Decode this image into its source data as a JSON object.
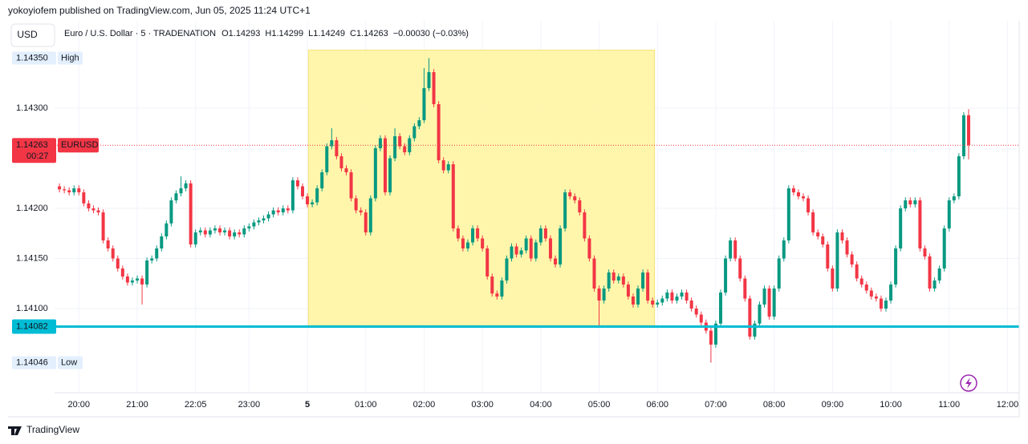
{
  "chart_data": {
    "type": "candlestick",
    "attribution": "yokoyiofem published on TradingView.com, Jun 05, 2025 11:24 UTC+1",
    "currency": "USD",
    "symbol": "Euro / U.S. Dollar · 5 · TRADENATION",
    "ohlc_letters": [
      "O",
      "H",
      "L",
      "C"
    ],
    "legend_values": [
      1.14293,
      1.14299,
      1.14249,
      1.14263
    ],
    "change_label": "−0.00030 (−0.03%)",
    "up_color": "#089981",
    "down_color": "#f23645",
    "open": [
      1.14222,
      1.14219,
      1.14218,
      1.14216,
      1.1422,
      1.14216,
      1.14205,
      1.142,
      1.14198,
      1.14196,
      1.14168,
      1.1416,
      1.1415,
      1.1414,
      1.14132,
      1.14126,
      1.14128,
      1.1413,
      1.14124,
      1.14148,
      1.1415,
      1.1416,
      1.14172,
      1.14185,
      1.14208,
      1.14215,
      1.1422,
      1.14225,
      1.14164,
      1.14176,
      1.14178,
      1.14174,
      1.14178,
      1.1418,
      1.14176,
      1.14178,
      1.14172,
      1.14176,
      1.14174,
      1.1418,
      1.14182,
      1.14186,
      1.14188,
      1.1419,
      1.14194,
      1.14198,
      1.14196,
      1.142,
      1.14198,
      1.14228,
      1.14222,
      1.14212,
      1.14204,
      1.14206,
      1.1422,
      1.14236,
      1.14262,
      1.14268,
      1.14252,
      1.1424,
      1.14236,
      1.1421,
      1.14198,
      1.14196,
      1.14176,
      1.1421,
      1.1426,
      1.1427,
      1.14216,
      1.1425,
      1.14272,
      1.14262,
      1.14256,
      1.1427,
      1.14282,
      1.14288,
      1.1432,
      1.14336,
      1.14304,
      1.14248,
      1.14238,
      1.14244,
      1.1418,
      1.1417,
      1.1416,
      1.14166,
      1.1418,
      1.1417,
      1.1416,
      1.14132,
      1.14115,
      1.14112,
      1.14128,
      1.1415,
      1.14162,
      1.14154,
      1.14158,
      1.1417,
      1.1415,
      1.14166,
      1.1418,
      1.1417,
      1.1415,
      1.14144,
      1.1418,
      1.14216,
      1.14212,
      1.14208,
      1.14196,
      1.1417,
      1.1415,
      1.1412,
      1.14108,
      1.1412,
      1.14136,
      1.14128,
      1.14132,
      1.14124,
      1.14112,
      1.14104,
      1.1412,
      1.14136,
      1.14108,
      1.14104,
      1.14106,
      1.1411,
      1.14116,
      1.14108,
      1.14112,
      1.14116,
      1.14108,
      1.141,
      1.14094,
      1.14086,
      1.14078,
      1.14064,
      1.14085,
      1.14116,
      1.1415,
      1.14168,
      1.1415,
      1.1413,
      1.1411,
      1.14072,
      1.14085,
      1.14104,
      1.1412,
      1.14092,
      1.1412,
      1.1415,
      1.14168,
      1.1422,
      1.14216,
      1.14212,
      1.1421,
      1.14196,
      1.14176,
      1.14172,
      1.14164,
      1.1414,
      1.1412,
      1.14176,
      1.14168,
      1.14154,
      1.14144,
      1.1413,
      1.14124,
      1.14118,
      1.14112,
      1.1411,
      1.141,
      1.14108,
      1.14124,
      1.1416,
      1.142,
      1.14208,
      1.14204,
      1.14208,
      1.1416,
      1.14152,
      1.1412,
      1.14128,
      1.1414,
      1.1418,
      1.14208,
      1.14212,
      1.14252,
      1.14293
    ],
    "high": [
      1.14225,
      1.14222,
      1.14221,
      1.14223,
      1.14223,
      1.14219,
      1.14208,
      1.14203,
      1.14201,
      1.14199,
      1.14171,
      1.14163,
      1.14153,
      1.14143,
      1.14135,
      1.14131,
      1.14133,
      1.14133,
      1.14151,
      1.14153,
      1.14163,
      1.14175,
      1.14188,
      1.14211,
      1.14218,
      1.14232,
      1.14228,
      1.14228,
      1.14179,
      1.14181,
      1.14181,
      1.14181,
      1.14183,
      1.14183,
      1.14181,
      1.14181,
      1.14179,
      1.14179,
      1.14183,
      1.14185,
      1.14189,
      1.14191,
      1.14193,
      1.14197,
      1.14201,
      1.14201,
      1.14203,
      1.14203,
      1.14231,
      1.14231,
      1.14225,
      1.14215,
      1.14209,
      1.14223,
      1.14239,
      1.14265,
      1.1428,
      1.14271,
      1.14255,
      1.14243,
      1.14239,
      1.14213,
      1.14201,
      1.14199,
      1.14213,
      1.14263,
      1.14273,
      1.14273,
      1.14253,
      1.1428,
      1.14275,
      1.14265,
      1.14273,
      1.14285,
      1.14291,
      1.1434,
      1.1435,
      1.14339,
      1.14307,
      1.14251,
      1.14247,
      1.14247,
      1.14183,
      1.14173,
      1.14169,
      1.14183,
      1.14183,
      1.14173,
      1.14163,
      1.14135,
      1.14118,
      1.14131,
      1.14153,
      1.14165,
      1.14165,
      1.14161,
      1.14173,
      1.14173,
      1.14169,
      1.14183,
      1.14183,
      1.14173,
      1.14153,
      1.14183,
      1.14219,
      1.14219,
      1.14215,
      1.14211,
      1.14199,
      1.14173,
      1.14153,
      1.14123,
      1.14123,
      1.14139,
      1.14139,
      1.14135,
      1.14135,
      1.14127,
      1.14115,
      1.14123,
      1.14139,
      1.14139,
      1.14111,
      1.14109,
      1.14113,
      1.14119,
      1.14119,
      1.14115,
      1.14119,
      1.14119,
      1.14111,
      1.14103,
      1.14097,
      1.14089,
      1.14081,
      1.14088,
      1.14119,
      1.14153,
      1.14171,
      1.14171,
      1.14153,
      1.14133,
      1.14113,
      1.14088,
      1.14107,
      1.14123,
      1.14123,
      1.14123,
      1.14153,
      1.14171,
      1.14223,
      1.14223,
      1.14219,
      1.14215,
      1.14213,
      1.14199,
      1.14179,
      1.14175,
      1.14167,
      1.14143,
      1.14179,
      1.14179,
      1.14171,
      1.14157,
      1.14147,
      1.14133,
      1.14127,
      1.14121,
      1.14115,
      1.14113,
      1.14111,
      1.14127,
      1.14163,
      1.14203,
      1.14211,
      1.14211,
      1.14211,
      1.14211,
      1.14163,
      1.14155,
      1.14131,
      1.14143,
      1.14183,
      1.14211,
      1.14215,
      1.14255,
      1.14296,
      1.14299
    ],
    "low": [
      1.14216,
      1.14215,
      1.14213,
      1.14213,
      1.14213,
      1.14202,
      1.14197,
      1.14195,
      1.14193,
      1.14165,
      1.14157,
      1.14147,
      1.14137,
      1.14129,
      1.14123,
      1.14123,
      1.14125,
      1.14104,
      1.14121,
      1.14145,
      1.14147,
      1.14157,
      1.14169,
      1.14182,
      1.14205,
      1.14212,
      1.14217,
      1.14161,
      1.14161,
      1.14173,
      1.14171,
      1.14171,
      1.14175,
      1.14173,
      1.14173,
      1.14169,
      1.14169,
      1.14171,
      1.14171,
      1.14177,
      1.14179,
      1.14183,
      1.14185,
      1.14187,
      1.14191,
      1.14193,
      1.14193,
      1.14195,
      1.14195,
      1.14219,
      1.14209,
      1.14201,
      1.14201,
      1.14203,
      1.14217,
      1.14233,
      1.14259,
      1.14249,
      1.14237,
      1.14233,
      1.14207,
      1.14195,
      1.14193,
      1.14173,
      1.14173,
      1.14207,
      1.14257,
      1.14213,
      1.14213,
      1.14247,
      1.14259,
      1.14253,
      1.14253,
      1.14267,
      1.14279,
      1.14285,
      1.14317,
      1.14301,
      1.14245,
      1.14235,
      1.14235,
      1.14177,
      1.14167,
      1.14157,
      1.14157,
      1.14163,
      1.14167,
      1.14157,
      1.14129,
      1.14112,
      1.14109,
      1.14109,
      1.14125,
      1.14147,
      1.14151,
      1.14151,
      1.14155,
      1.14147,
      1.14147,
      1.14163,
      1.14167,
      1.14147,
      1.14141,
      1.14141,
      1.14177,
      1.14209,
      1.14205,
      1.14193,
      1.14167,
      1.14147,
      1.14117,
      1.14082,
      1.14105,
      1.14117,
      1.14125,
      1.14125,
      1.14121,
      1.14109,
      1.14101,
      1.14101,
      1.14117,
      1.14105,
      1.14101,
      1.14101,
      1.14103,
      1.14107,
      1.14105,
      1.14105,
      1.14109,
      1.14105,
      1.14097,
      1.14091,
      1.14083,
      1.14075,
      1.14046,
      1.14061,
      1.14082,
      1.14113,
      1.14147,
      1.14147,
      1.14127,
      1.14107,
      1.14069,
      1.14069,
      1.14082,
      1.14101,
      1.14089,
      1.14089,
      1.14117,
      1.14147,
      1.14165,
      1.14213,
      1.14209,
      1.14207,
      1.14193,
      1.14173,
      1.14169,
      1.14161,
      1.14137,
      1.14117,
      1.14117,
      1.14165,
      1.14151,
      1.14141,
      1.14127,
      1.14121,
      1.14115,
      1.14109,
      1.14107,
      1.14097,
      1.14097,
      1.14105,
      1.14121,
      1.14157,
      1.14197,
      1.14201,
      1.14201,
      1.14157,
      1.14149,
      1.14117,
      1.14117,
      1.14125,
      1.14137,
      1.14177,
      1.14205,
      1.14209,
      1.14249,
      1.14249
    ],
    "close": [
      1.14219,
      1.14218,
      1.14216,
      1.1422,
      1.14216,
      1.14205,
      1.142,
      1.14198,
      1.14196,
      1.14168,
      1.1416,
      1.1415,
      1.1414,
      1.14132,
      1.14126,
      1.14128,
      1.1413,
      1.14124,
      1.14148,
      1.1415,
      1.1416,
      1.14172,
      1.14185,
      1.14208,
      1.14215,
      1.1422,
      1.14225,
      1.14164,
      1.14176,
      1.14178,
      1.14174,
      1.14178,
      1.1418,
      1.14176,
      1.14178,
      1.14172,
      1.14176,
      1.14174,
      1.1418,
      1.14182,
      1.14186,
      1.14188,
      1.1419,
      1.14194,
      1.14198,
      1.14196,
      1.142,
      1.14198,
      1.14228,
      1.14222,
      1.14212,
      1.14204,
      1.14206,
      1.1422,
      1.14236,
      1.14262,
      1.14268,
      1.14252,
      1.1424,
      1.14236,
      1.1421,
      1.14198,
      1.14196,
      1.14176,
      1.1421,
      1.1426,
      1.1427,
      1.14216,
      1.1425,
      1.14272,
      1.14262,
      1.14256,
      1.1427,
      1.14282,
      1.14288,
      1.1432,
      1.14336,
      1.14304,
      1.14248,
      1.14238,
      1.14244,
      1.1418,
      1.1417,
      1.1416,
      1.14166,
      1.1418,
      1.1417,
      1.1416,
      1.14132,
      1.14115,
      1.14112,
      1.14128,
      1.1415,
      1.14162,
      1.14154,
      1.14158,
      1.1417,
      1.1415,
      1.14166,
      1.1418,
      1.1417,
      1.1415,
      1.14144,
      1.1418,
      1.14216,
      1.14212,
      1.14208,
      1.14196,
      1.1417,
      1.1415,
      1.1412,
      1.14108,
      1.1412,
      1.14136,
      1.14128,
      1.14132,
      1.14124,
      1.14112,
      1.14104,
      1.1412,
      1.14136,
      1.14108,
      1.14104,
      1.14106,
      1.1411,
      1.14116,
      1.14108,
      1.14112,
      1.14116,
      1.14108,
      1.141,
      1.14094,
      1.14086,
      1.14078,
      1.14064,
      1.14085,
      1.14116,
      1.1415,
      1.14168,
      1.1415,
      1.1413,
      1.1411,
      1.14072,
      1.14085,
      1.14104,
      1.1412,
      1.14092,
      1.1412,
      1.1415,
      1.14168,
      1.1422,
      1.14216,
      1.14212,
      1.1421,
      1.14196,
      1.14176,
      1.14172,
      1.14164,
      1.1414,
      1.1412,
      1.14176,
      1.14168,
      1.14154,
      1.14144,
      1.1413,
      1.14124,
      1.14118,
      1.14112,
      1.1411,
      1.141,
      1.14108,
      1.14124,
      1.1416,
      1.142,
      1.14208,
      1.14204,
      1.14208,
      1.1416,
      1.14152,
      1.1412,
      1.14128,
      1.1414,
      1.1418,
      1.14208,
      1.14212,
      1.14252,
      1.14293,
      1.14263
    ],
    "xlim": [
      -1,
      197.4
    ],
    "xticks": [
      {
        "value": 4,
        "label": "20:00"
      },
      {
        "value": 16,
        "label": "21:00"
      },
      {
        "value": 28,
        "label": "22:05"
      },
      {
        "value": 39,
        "label": "23:00"
      },
      {
        "value": 51,
        "label": "5"
      },
      {
        "value": 63,
        "label": "01:00"
      },
      {
        "value": 75,
        "label": "02:00"
      },
      {
        "value": 87,
        "label": "03:00"
      },
      {
        "value": 99,
        "label": "04:00"
      },
      {
        "value": 111,
        "label": "05:00"
      },
      {
        "value": 123,
        "label": "06:00"
      },
      {
        "value": 135,
        "label": "07:00"
      },
      {
        "value": 147,
        "label": "08:00"
      },
      {
        "value": 159,
        "label": "09:00"
      },
      {
        "value": 171,
        "label": "10:00"
      },
      {
        "value": 183,
        "label": "11:00"
      },
      {
        "value": 195,
        "label": "12:00"
      }
    ],
    "ylim": [
      1.14016,
      1.14384
    ],
    "yticks": [
      {
        "value": 1.141,
        "label": "1.14100"
      },
      {
        "value": 1.1415,
        "label": "1.14150"
      },
      {
        "value": 1.142,
        "label": "1.14200"
      },
      {
        "value": 1.143,
        "label": "1.14300"
      }
    ],
    "grid": true,
    "zone": {
      "start": 51.2,
      "end": 122.4,
      "low": 1.14083,
      "high": 1.14358,
      "color": "#fff59d"
    },
    "hline": {
      "value": 1.14082,
      "color": "#00bcd4"
    },
    "high_marker": {
      "value": 1.1435,
      "label": "1.14350",
      "text": "High"
    },
    "low_marker": {
      "value": 1.14046,
      "text": "Low"
    },
    "last_price": {
      "value": 1.14263,
      "symbol_tag": "EURUSD",
      "countdown": "00:27"
    },
    "brand": "TradingView"
  }
}
